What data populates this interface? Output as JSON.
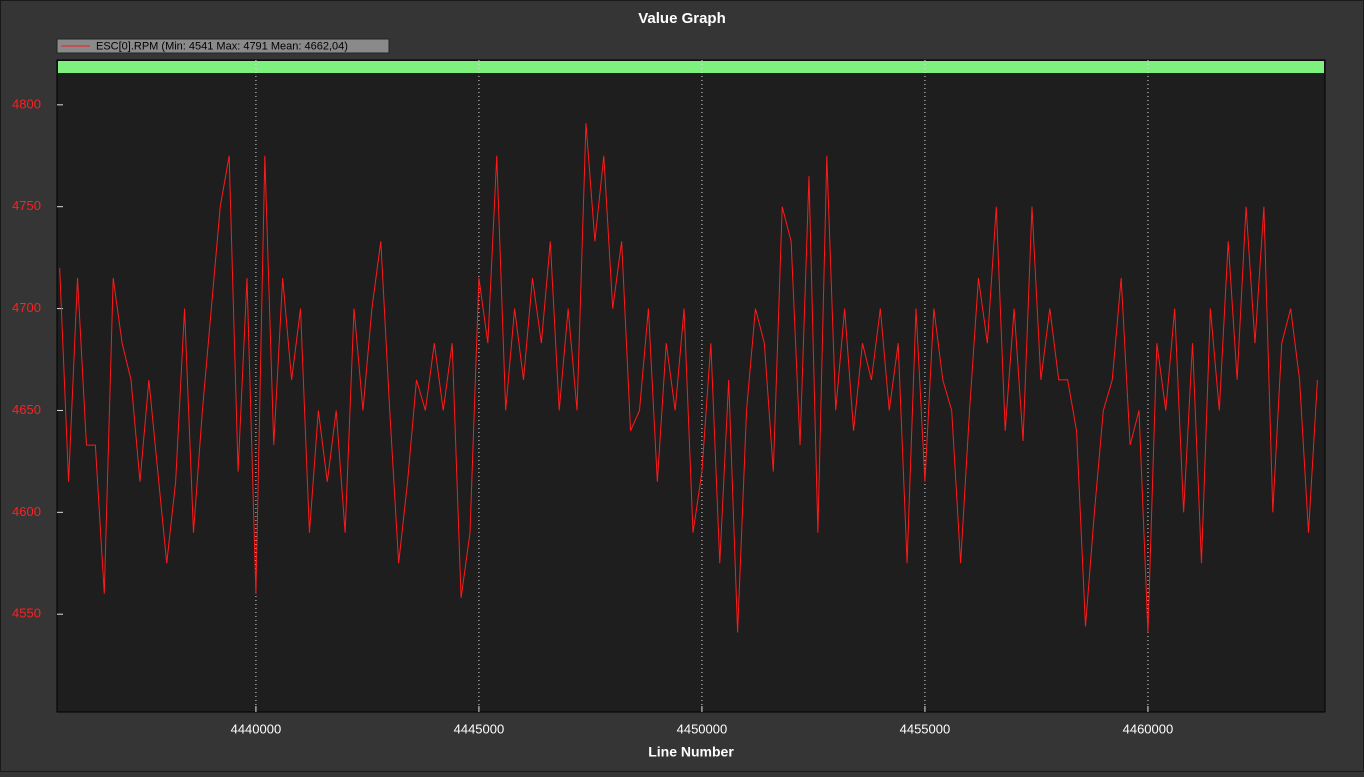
{
  "chart_data": {
    "type": "line",
    "title": "Value Graph",
    "x_label": "Line Number",
    "legend_position": "top-left",
    "grid": true,
    "xlim": [
      4435540,
      4463970
    ],
    "ylim": [
      4502,
      4822
    ],
    "xticks": [
      4440000,
      4445000,
      4450000,
      4455000,
      4460000
    ],
    "yticks": [
      4550,
      4600,
      4650,
      4700,
      4750,
      4800
    ],
    "x": [
      4435600,
      4435800,
      4436000,
      4436200,
      4436400,
      4436600,
      4436800,
      4437000,
      4437200,
      4437400,
      4437600,
      4437800,
      4438000,
      4438200,
      4438400,
      4438600,
      4438800,
      4439000,
      4439200,
      4439400,
      4439600,
      4439800,
      4440000,
      4440200,
      4440400,
      4440600,
      4440800,
      4441000,
      4441200,
      4441400,
      4441600,
      4441800,
      4442000,
      4442200,
      4442400,
      4442600,
      4442800,
      4443000,
      4443200,
      4443400,
      4443600,
      4443800,
      4444000,
      4444200,
      4444400,
      4444600,
      4444800,
      4445000,
      4445200,
      4445400,
      4445600,
      4445800,
      4446000,
      4446200,
      4446400,
      4446600,
      4446800,
      4447000,
      4447200,
      4447400,
      4447600,
      4447800,
      4448000,
      4448200,
      4448400,
      4448600,
      4448800,
      4449000,
      4449200,
      4449400,
      4449600,
      4449800,
      4450000,
      4450200,
      4450400,
      4450600,
      4450800,
      4451000,
      4451200,
      4451400,
      4451600,
      4451800,
      4452000,
      4452200,
      4452400,
      4452600,
      4452800,
      4453000,
      4453200,
      4453400,
      4453600,
      4453800,
      4454000,
      4454200,
      4454400,
      4454600,
      4454800,
      4455000,
      4455200,
      4455400,
      4455600,
      4455800,
      4456000,
      4456200,
      4456400,
      4456600,
      4456800,
      4457000,
      4457200,
      4457400,
      4457600,
      4457800,
      4458000,
      4458200,
      4458400,
      4458600,
      4458800,
      4459000,
      4459200,
      4459400,
      4459600,
      4459800,
      4460000,
      4460200,
      4460400,
      4460600,
      4460800,
      4461000,
      4461200,
      4461400,
      4461600,
      4461800,
      4462000,
      4462200,
      4462400,
      4462600,
      4462800,
      4463000,
      4463200,
      4463400,
      4463600,
      4463800
    ],
    "series": [
      {
        "name": "ESC[0].RPM  (Min: 4541 Max: 4791 Mean: 4662,04)",
        "color": "#ff1a1a",
        "values": [
          4720,
          4615,
          4715,
          4633,
          4633,
          4560,
          4715,
          4683,
          4665,
          4615,
          4665,
          4620,
          4575,
          4615,
          4700,
          4590,
          4650,
          4700,
          4750,
          4775,
          4620,
          4715,
          4560,
          4775,
          4633,
          4715,
          4665,
          4700,
          4590,
          4650,
          4615,
          4650,
          4590,
          4700,
          4650,
          4700,
          4733,
          4650,
          4575,
          4615,
          4665,
          4650,
          4683,
          4650,
          4683,
          4558,
          4590,
          4715,
          4683,
          4775,
          4650,
          4700,
          4665,
          4715,
          4683,
          4733,
          4650,
          4700,
          4650,
          4791,
          4733,
          4775,
          4700,
          4733,
          4640,
          4650,
          4700,
          4615,
          4683,
          4650,
          4700,
          4590,
          4620,
          4683,
          4575,
          4665,
          4541,
          4650,
          4700,
          4683,
          4620,
          4750,
          4733,
          4633,
          4765,
          4590,
          4775,
          4650,
          4700,
          4640,
          4683,
          4665,
          4700,
          4650,
          4683,
          4575,
          4700,
          4615,
          4700,
          4665,
          4650,
          4575,
          4650,
          4715,
          4683,
          4750,
          4640,
          4700,
          4635,
          4750,
          4665,
          4700,
          4665,
          4665,
          4640,
          4544,
          4600,
          4650,
          4665,
          4715,
          4633,
          4650,
          4541,
          4683,
          4650,
          4700,
          4600,
          4683,
          4575,
          4700,
          4650,
          4733,
          4665,
          4750,
          4683,
          4750,
          4600,
          4683,
          4700,
          4665,
          4590,
          4665
        ]
      }
    ]
  }
}
